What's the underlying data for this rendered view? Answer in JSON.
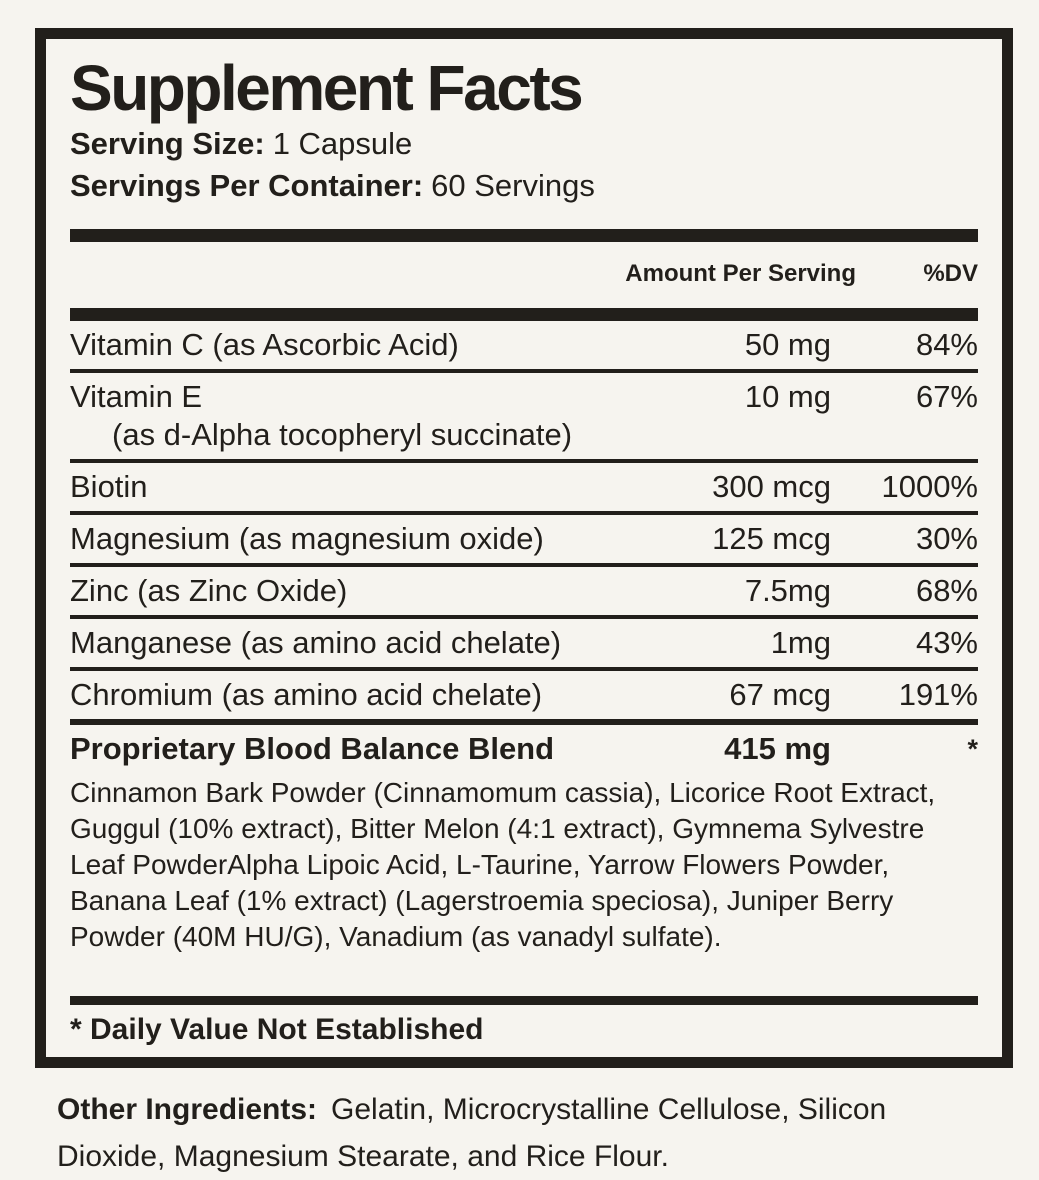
{
  "label": {
    "title": "Supplement Facts",
    "serving_size_label": "Serving Size:",
    "serving_size_value": "1 Capsule",
    "servings_label": "Servings Per Container:",
    "servings_value": "60 Servings",
    "header": {
      "amount": "Amount Per Serving",
      "dv": "%DV"
    },
    "rows": [
      {
        "name": "Vitamin C (as Ascorbic Acid)",
        "amount": "50 mg",
        "dv": "84%"
      },
      {
        "name": "Vitamin E",
        "sub": "(as d-Alpha tocopheryl succinate)",
        "amount": "10 mg",
        "dv": "67%"
      },
      {
        "name": "Biotin",
        "amount": "300 mcg",
        "dv": "1000%"
      },
      {
        "name": "Magnesium (as magnesium oxide)",
        "amount": "125 mcg",
        "dv": "30%"
      },
      {
        "name": "Zinc (as Zinc Oxide)",
        "amount": "7.5mg",
        "dv": "68%"
      },
      {
        "name": "Manganese (as amino acid chelate)",
        "amount": "1mg",
        "dv": "43%"
      },
      {
        "name": "Chromium (as amino acid chelate)",
        "amount": "67 mcg",
        "dv": "191%"
      }
    ],
    "blend": {
      "name": "Proprietary Blood Balance Blend",
      "amount": "415 mg",
      "dv": "*",
      "description": "Cinnamon Bark Powder (Cinnamomum cassia), Licorice Root Extract, Guggul (10% extract), Bitter Melon (4:1 extract), Gymnema Sylvestre Leaf PowderAlpha Lipoic Acid, L-Taurine, Yarrow Flowers Powder, Banana Leaf (1% extract) (Lagerstroemia speciosa), Juniper Berry Powder (40M HU/G), Vanadium (as vanadyl sulfate)."
    },
    "footnote": "* Daily Value Not Established",
    "other_ingredients_label": "Other Ingredients:",
    "other_ingredients_value": "Gelatin, Microcrystalline Cellulose, Silicon Dioxide, Magnesium Stearate, and Rice Flour.",
    "colors": {
      "ink": "#221f1b",
      "background": "#f6f4ef"
    }
  }
}
